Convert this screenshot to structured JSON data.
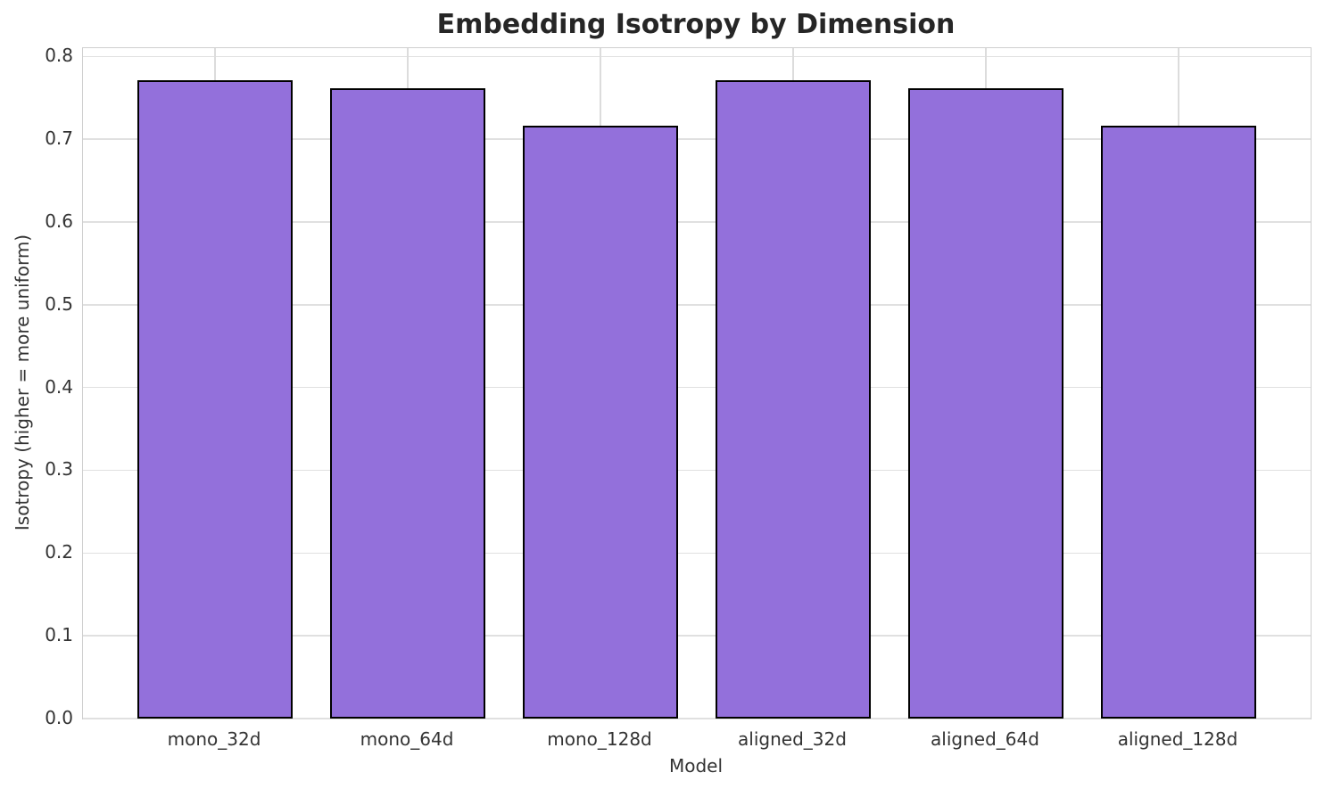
{
  "chart_data": {
    "type": "bar",
    "title": "Embedding Isotropy by Dimension",
    "xlabel": "Model",
    "ylabel": "Isotropy (higher = more uniform)",
    "categories": [
      "mono_32d",
      "mono_64d",
      "mono_128d",
      "aligned_32d",
      "aligned_64d",
      "aligned_128d"
    ],
    "values": [
      0.771,
      0.762,
      0.716,
      0.771,
      0.762,
      0.716
    ],
    "ylim": [
      0,
      0.81
    ],
    "yticks": [
      0.0,
      0.1,
      0.2,
      0.3,
      0.4,
      0.5,
      0.6,
      0.7,
      0.8
    ],
    "ytick_labels": [
      "0.0",
      "0.1",
      "0.2",
      "0.3",
      "0.4",
      "0.5",
      "0.6",
      "0.7",
      "0.8"
    ],
    "grid": true,
    "legend_position": "none",
    "bar_color": "#9370DB",
    "bar_edge_color": "#000000",
    "grid_color": "#e0e0e0",
    "text_color": "#333333",
    "title_color": "#262626"
  }
}
